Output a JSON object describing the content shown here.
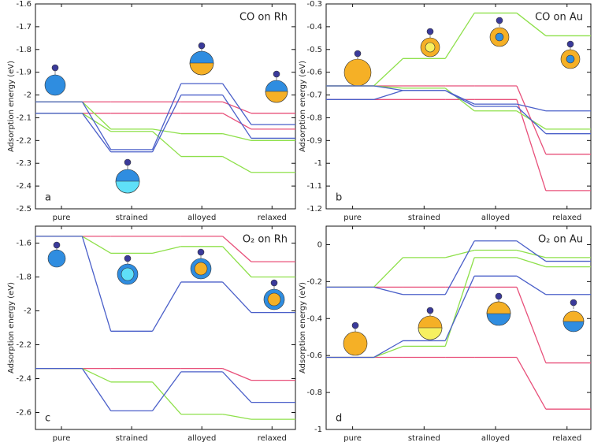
{
  "chart_data": [
    {
      "type": "line",
      "title": "CO on Rh",
      "panel_label": "a",
      "ylabel": "Adsorption energy (eV)",
      "categories": [
        "pure",
        "strained",
        "alloyed",
        "relaxed"
      ],
      "ylim": [
        -2.5,
        -1.6
      ],
      "yticks": [
        -2.5,
        -2.4,
        -2.3,
        -2.2,
        -2.1,
        -2,
        -1.9,
        -1.8,
        -1.7,
        -1.6
      ],
      "series": [
        {
          "color": "#e8507a",
          "values": [
            -2.03,
            -2.03,
            -2.03,
            -2.08
          ]
        },
        {
          "color": "#e8507a",
          "values": [
            -2.08,
            -2.08,
            -2.08,
            -2.15
          ]
        },
        {
          "color": "#8ee04a",
          "values": [
            -2.03,
            -2.15,
            -2.17,
            -2.2
          ]
        },
        {
          "color": "#8ee04a",
          "values": [
            -2.08,
            -2.16,
            -2.27,
            -2.34
          ]
        },
        {
          "color": "#4a5fc9",
          "values": [
            -2.03,
            -2.24,
            -1.95,
            -2.13
          ]
        },
        {
          "color": "#4a5fc9",
          "values": [
            -2.08,
            -2.25,
            -2.0,
            -2.19
          ]
        }
      ]
    },
    {
      "type": "line",
      "title": "CO on Au",
      "panel_label": "b",
      "ylabel": "Adsorption energy (eV)",
      "categories": [
        "pure",
        "strained",
        "alloyed",
        "relaxed"
      ],
      "ylim": [
        -1.2,
        -0.3
      ],
      "yticks": [
        -1.2,
        -1.1,
        -1,
        -0.9,
        -0.8,
        -0.7,
        -0.6,
        -0.5,
        -0.4,
        -0.3
      ],
      "series": [
        {
          "color": "#e8507a",
          "values": [
            -0.66,
            -0.66,
            -0.66,
            -0.96
          ]
        },
        {
          "color": "#e8507a",
          "values": [
            -0.72,
            -0.72,
            -0.72,
            -1.12
          ]
        },
        {
          "color": "#8ee04a",
          "values": [
            -0.66,
            -0.54,
            -0.34,
            -0.44
          ]
        },
        {
          "color": "#8ee04a",
          "values": [
            -0.66,
            -0.67,
            -0.77,
            -0.85
          ]
        },
        {
          "color": "#4a5fc9",
          "values": [
            -0.72,
            -0.68,
            -0.74,
            -0.77
          ]
        },
        {
          "color": "#4a5fc9",
          "values": [
            -0.66,
            -0.68,
            -0.75,
            -0.87
          ]
        }
      ]
    },
    {
      "type": "line",
      "title": "O₂ on Rh",
      "panel_label": "c",
      "ylabel": "Adsorption energy (eV)",
      "categories": [
        "pure",
        "strained",
        "alloyed",
        "relaxed"
      ],
      "ylim": [
        -2.7,
        -1.5
      ],
      "yticks": [
        -2.6,
        -2.4,
        -2.2,
        -2,
        -1.8,
        -1.6
      ],
      "series": [
        {
          "color": "#e8507a",
          "values": [
            -1.56,
            -1.56,
            -1.56,
            -1.71
          ]
        },
        {
          "color": "#e8507a",
          "values": [
            -2.34,
            -2.34,
            -2.34,
            -2.41
          ]
        },
        {
          "color": "#8ee04a",
          "values": [
            -1.56,
            -1.66,
            -1.62,
            -1.8
          ]
        },
        {
          "color": "#8ee04a",
          "values": [
            -2.34,
            -2.42,
            -2.61,
            -2.64
          ]
        },
        {
          "color": "#4a5fc9",
          "values": [
            -1.56,
            -2.12,
            -1.83,
            -2.01
          ]
        },
        {
          "color": "#4a5fc9",
          "values": [
            -2.34,
            -2.59,
            -2.36,
            -2.54
          ]
        }
      ]
    },
    {
      "type": "line",
      "title": "O₂ on Au",
      "panel_label": "d",
      "ylabel": "Adsorption energy (eV)",
      "categories": [
        "pure",
        "strained",
        "alloyed",
        "relaxed"
      ],
      "ylim": [
        -1,
        0.1
      ],
      "yticks": [
        -1,
        -0.8,
        -0.6,
        -0.4,
        -0.2,
        0
      ],
      "series": [
        {
          "color": "#e8507a",
          "values": [
            -0.23,
            -0.23,
            -0.23,
            -0.64
          ]
        },
        {
          "color": "#e8507a",
          "values": [
            -0.61,
            -0.61,
            -0.61,
            -0.89
          ]
        },
        {
          "color": "#8ee04a",
          "values": [
            -0.23,
            -0.07,
            -0.03,
            -0.07
          ]
        },
        {
          "color": "#8ee04a",
          "values": [
            -0.61,
            -0.55,
            -0.07,
            -0.12
          ]
        },
        {
          "color": "#4a5fc9",
          "values": [
            -0.23,
            -0.27,
            0.02,
            -0.09
          ]
        },
        {
          "color": "#4a5fc9",
          "values": [
            -0.61,
            -0.52,
            -0.17,
            -0.27
          ]
        }
      ]
    }
  ]
}
